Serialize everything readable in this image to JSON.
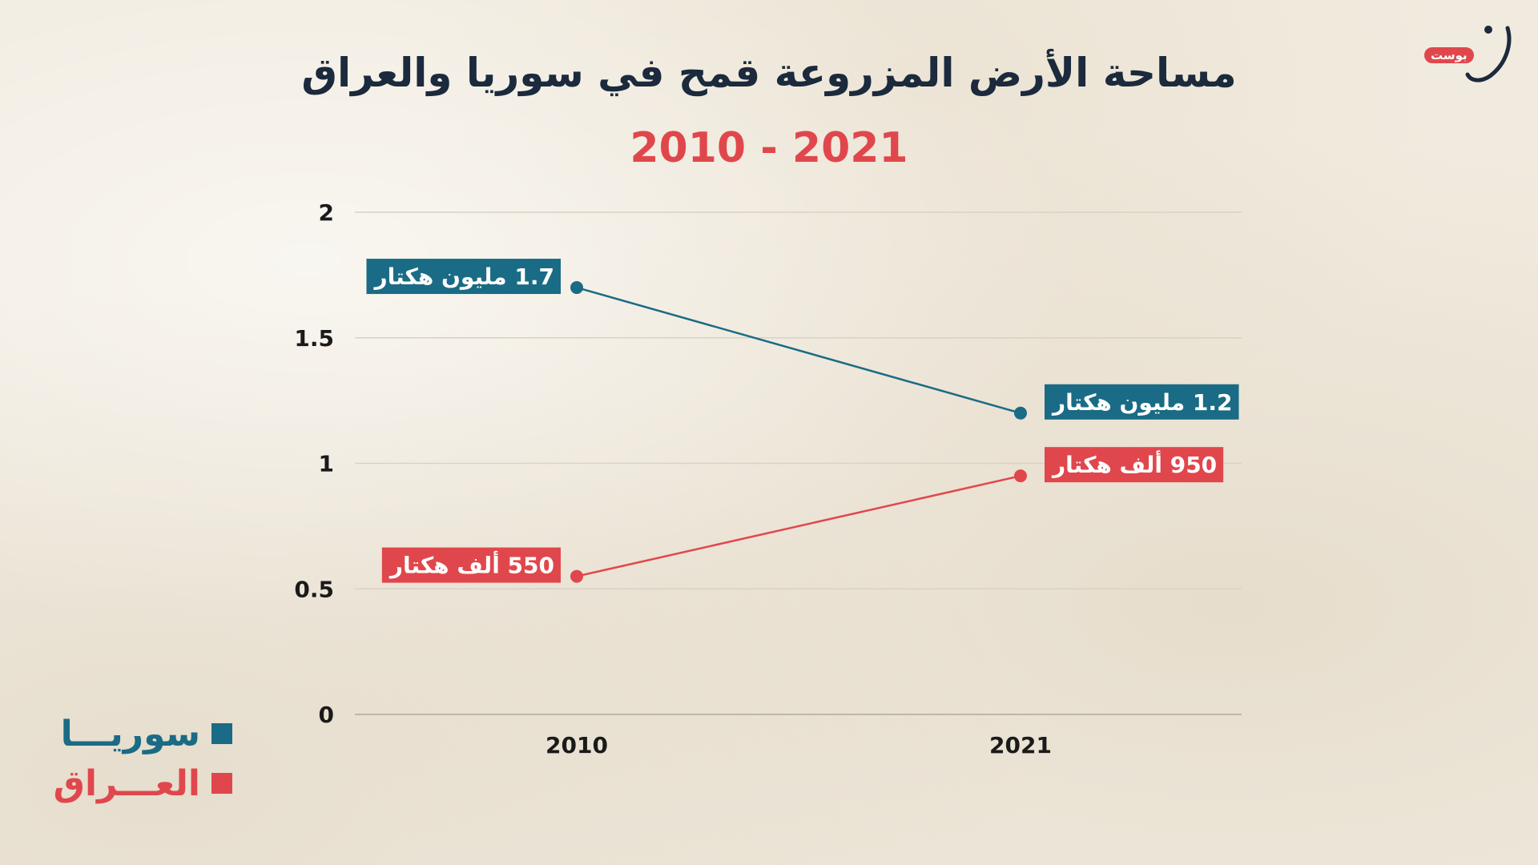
{
  "header": {
    "title": "مساحة الأرض المزروعة قمح في سوريا والعراق",
    "subtitle": "2010 - 2021"
  },
  "logo": {
    "badge": "بوست",
    "icon": "noon-post-logo-icon"
  },
  "legend": {
    "items": [
      {
        "label": "سوريـــا",
        "color": "#1a6b85"
      },
      {
        "label": "العـــراق",
        "color": "#e0474c"
      }
    ]
  },
  "chart_data": {
    "type": "line",
    "x": [
      "2010",
      "2021"
    ],
    "ylim": [
      0,
      2
    ],
    "yticks": [
      "0",
      "0.5",
      "1",
      "1.5",
      "2"
    ],
    "grid": true,
    "legend_position": "bottom-left",
    "series": [
      {
        "name": "سوريـــا",
        "color": "#1a6b85",
        "values": [
          1.7,
          1.2
        ],
        "labels": [
          "1.7 مليون هكتار",
          "1.2 مليون هكتار"
        ]
      },
      {
        "name": "العـــراق",
        "color": "#e0474c",
        "values": [
          0.55,
          0.95
        ],
        "labels": [
          "550 ألف هكتار",
          "950 ألف هكتار"
        ]
      }
    ]
  }
}
